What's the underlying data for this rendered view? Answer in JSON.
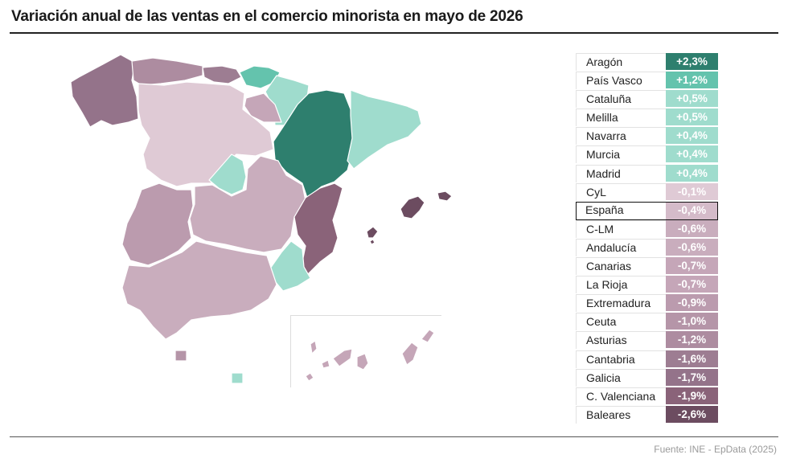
{
  "title": "Variación anual de las ventas en el comercio minorista en mayo de 2026",
  "source": "Fuente: INE - EpData (2025)",
  "colors": {
    "aragon": "#2e7f6e",
    "pais_vasco": "#64c3ad",
    "light_green": "#9fdccd",
    "cyl": "#dfcad5",
    "mid_mauve": "#c5a6b8",
    "dark_mauve": "#94738a",
    "valencia": "#8a6379",
    "baleares": "#6c4c60"
  },
  "regions": [
    {
      "name": "Aragón",
      "value": "+2,3%",
      "color": "#2e7f6e",
      "text": "#ffffff"
    },
    {
      "name": "País Vasco",
      "value": "+1,2%",
      "color": "#64c3ad",
      "text": "#ffffff"
    },
    {
      "name": "Cataluña",
      "value": "+0,5%",
      "color": "#9fdccd",
      "text": "#ffffff"
    },
    {
      "name": "Melilla",
      "value": "+0,5%",
      "color": "#9fdccd",
      "text": "#ffffff"
    },
    {
      "name": "Navarra",
      "value": "+0,4%",
      "color": "#9fdccd",
      "text": "#ffffff"
    },
    {
      "name": "Murcia",
      "value": "+0,4%",
      "color": "#9fdccd",
      "text": "#ffffff"
    },
    {
      "name": "Madrid",
      "value": "+0,4%",
      "color": "#9fdccd",
      "text": "#ffffff"
    },
    {
      "name": "CyL",
      "value": "-0,1%",
      "color": "#dfcad5",
      "text": "#ffffff"
    },
    {
      "name": "España",
      "value": "-0,4%",
      "color": "#d4bbc9",
      "text": "#ffffff",
      "highlight": true
    },
    {
      "name": "C-LM",
      "value": "-0,6%",
      "color": "#c9adbd",
      "text": "#ffffff"
    },
    {
      "name": "Andalucía",
      "value": "-0,6%",
      "color": "#c9adbd",
      "text": "#ffffff"
    },
    {
      "name": "Canarias",
      "value": "-0,7%",
      "color": "#c5a6b8",
      "text": "#ffffff"
    },
    {
      "name": "La Rioja",
      "value": "-0,7%",
      "color": "#c5a6b8",
      "text": "#ffffff"
    },
    {
      "name": "Extremadura",
      "value": "-0,9%",
      "color": "#bb9bae",
      "text": "#ffffff"
    },
    {
      "name": "Ceuta",
      "value": "-1,0%",
      "color": "#b595a8",
      "text": "#ffffff"
    },
    {
      "name": "Asturias",
      "value": "-1,2%",
      "color": "#ad8ca0",
      "text": "#ffffff"
    },
    {
      "name": "Cantabria",
      "value": "-1,6%",
      "color": "#9d7d92",
      "text": "#ffffff"
    },
    {
      "name": "Galicia",
      "value": "-1,7%",
      "color": "#94738a",
      "text": "#ffffff"
    },
    {
      "name": "C. Valenciana",
      "value": "-1,9%",
      "color": "#8a6379",
      "text": "#ffffff"
    },
    {
      "name": "Baleares",
      "value": "-2,6%",
      "color": "#6c4c60",
      "text": "#ffffff"
    }
  ]
}
